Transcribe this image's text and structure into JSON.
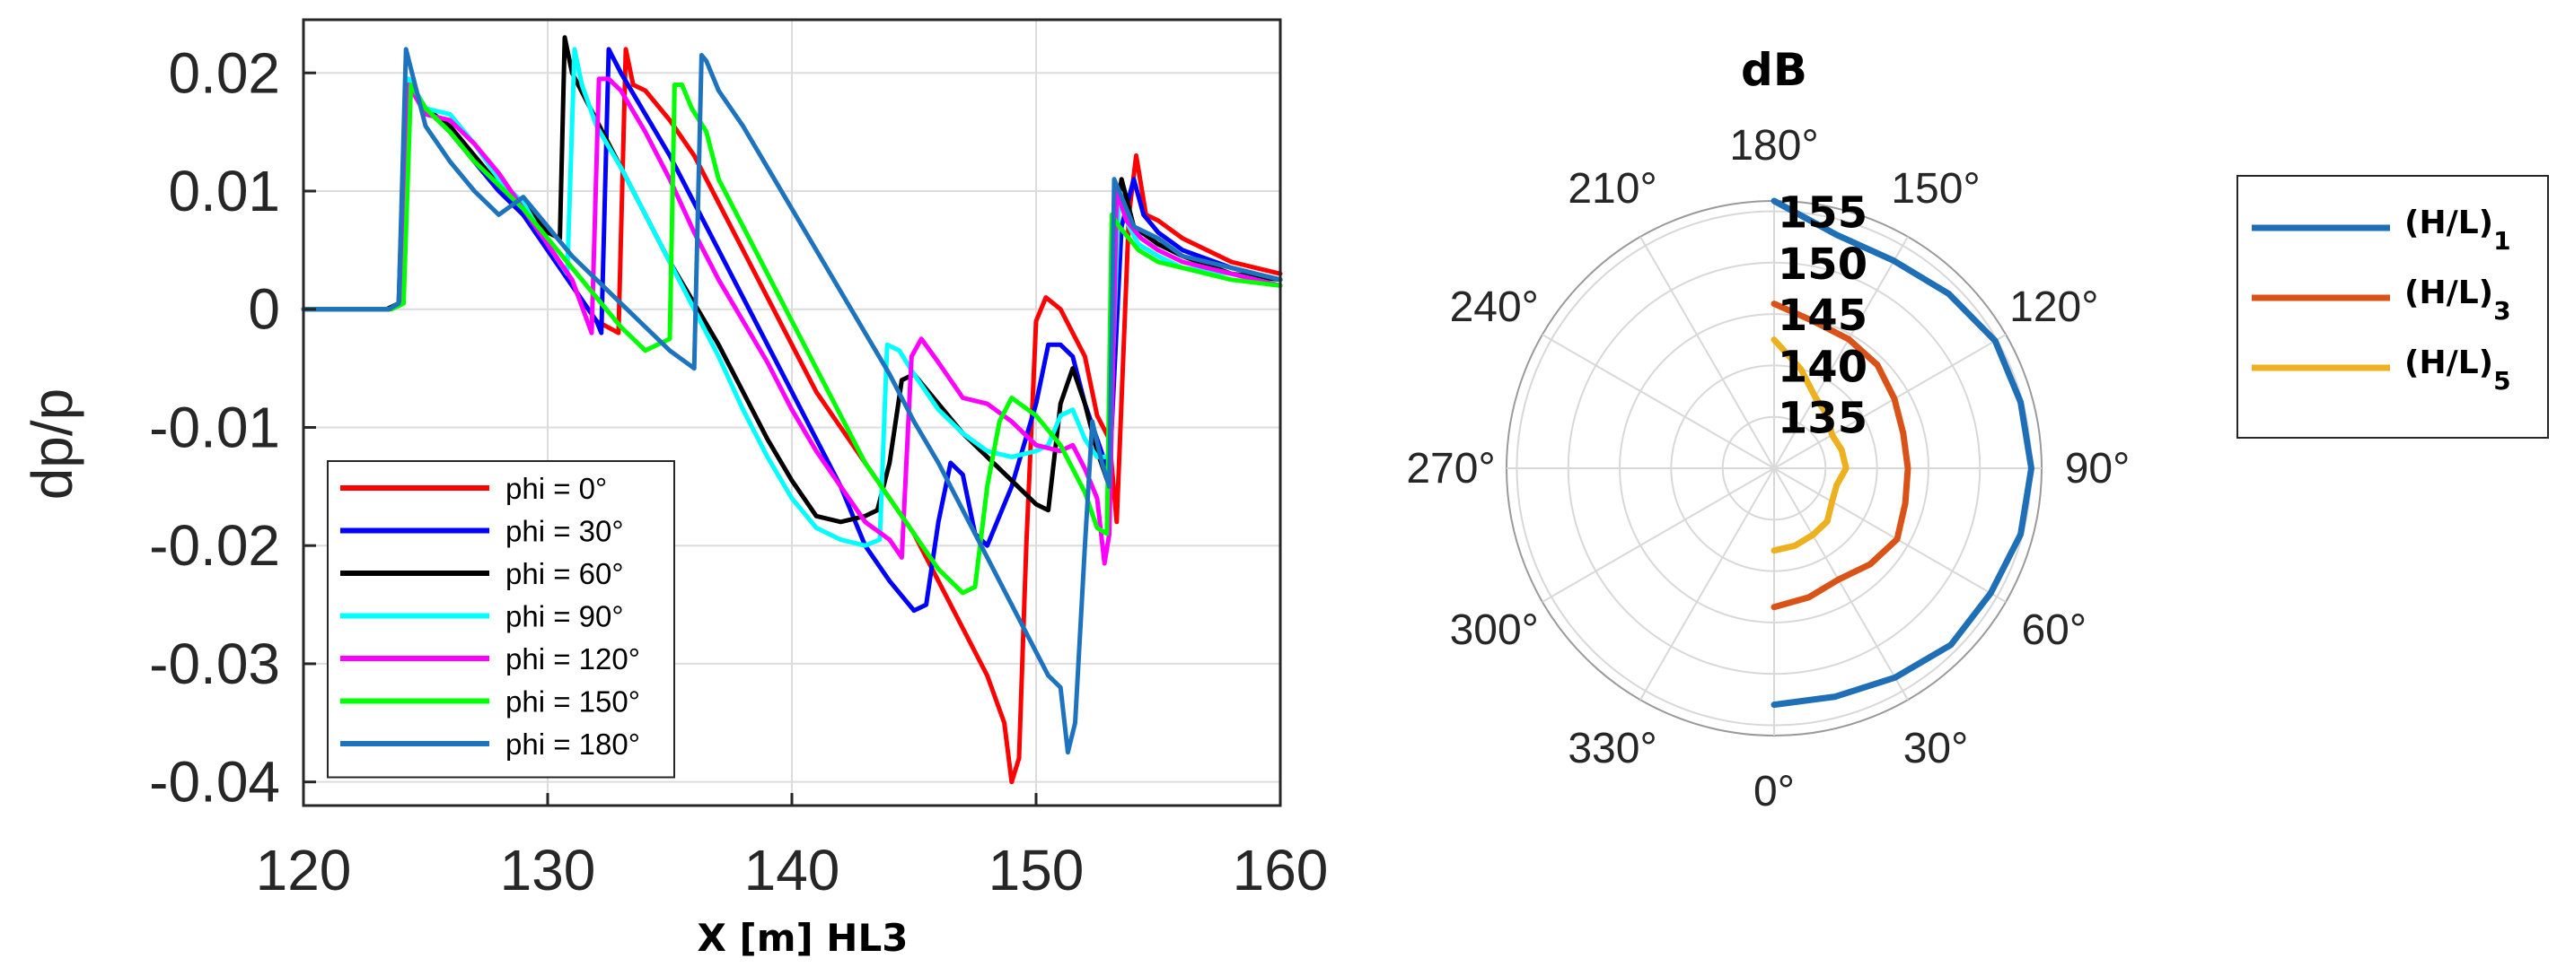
{
  "chart_data": [
    {
      "type": "line",
      "xlabel": "X [m] HL3",
      "ylabel": "dp/p",
      "xlim": [
        120,
        160
      ],
      "ylim": [
        -0.042,
        0.0245
      ],
      "xticks": [
        120,
        130,
        140,
        150,
        160
      ],
      "yticks": [
        0.02,
        0.01,
        0,
        -0.01,
        -0.02,
        -0.03,
        -0.04
      ],
      "ytick_labels": [
        "0.02",
        "0.01",
        "0",
        "-0.01",
        "-0.02",
        "-0.03",
        "-0.04"
      ],
      "grid": true,
      "legend_position": "bottom-left",
      "series": [
        {
          "name": "phi = 0°",
          "color": "#ff0000",
          "x": [
            120,
            123.5,
            124.0,
            124.3,
            125,
            126,
            127,
            128,
            129,
            130,
            131,
            132,
            132.9,
            133.2,
            133.5,
            134,
            135,
            136,
            137,
            138,
            139,
            140,
            141,
            142,
            143,
            144,
            145,
            146,
            147,
            148,
            148.7,
            149,
            149.3,
            149.6,
            150,
            150.4,
            151,
            151.5,
            152,
            152.5,
            153,
            153.3,
            153.8,
            154.1,
            154.5,
            155,
            156,
            158,
            160
          ],
          "y": [
            0,
            0,
            0.0005,
            0.019,
            0.017,
            0.015,
            0.0125,
            0.01,
            0.008,
            0.005,
            0.002,
            -0.001,
            -0.002,
            0.022,
            0.019,
            0.0185,
            0.016,
            0.013,
            0.009,
            0.005,
            0.001,
            -0.003,
            -0.007,
            -0.01,
            -0.013,
            -0.016,
            -0.019,
            -0.023,
            -0.027,
            -0.031,
            -0.035,
            -0.04,
            -0.038,
            -0.02,
            -0.001,
            0.001,
            0,
            -0.002,
            -0.004,
            -0.009,
            -0.011,
            -0.018,
            0.008,
            0.013,
            0.008,
            0.0075,
            0.006,
            0.004,
            0.003
          ]
        },
        {
          "name": "phi = 30°",
          "color": "#0000ff",
          "x": [
            120,
            123.5,
            124.0,
            124.3,
            125,
            126,
            127,
            128,
            129,
            130,
            131,
            132,
            132.2,
            132.5,
            133,
            134,
            135,
            136,
            137,
            138,
            139,
            140,
            141,
            142,
            143,
            144,
            145,
            145.5,
            146,
            146.5,
            147,
            147.5,
            148,
            149,
            150,
            150.5,
            151,
            151.5,
            152,
            152.5,
            153,
            153.5,
            154,
            154.4,
            155,
            156,
            158,
            160
          ],
          "y": [
            0,
            0,
            0.0005,
            0.0195,
            0.017,
            0.015,
            0.0125,
            0.01,
            0.008,
            0.005,
            0.002,
            -0.001,
            -0.002,
            0.022,
            0.02,
            0.0165,
            0.013,
            0.009,
            0.005,
            0.001,
            -0.003,
            -0.007,
            -0.011,
            -0.015,
            -0.02,
            -0.023,
            -0.0255,
            -0.025,
            -0.018,
            -0.013,
            -0.014,
            -0.019,
            -0.02,
            -0.015,
            -0.008,
            -0.003,
            -0.003,
            -0.004,
            -0.008,
            -0.011,
            -0.014,
            0.007,
            0.011,
            0.008,
            0.0065,
            0.005,
            0.0035,
            0.0025
          ]
        },
        {
          "name": "phi = 60°",
          "color": "#000000",
          "x": [
            120,
            123.4,
            123.9,
            124.2,
            125,
            126,
            127,
            128,
            129,
            130,
            130.5,
            130.7,
            131,
            132,
            133,
            134,
            135,
            136,
            137,
            138,
            139,
            140,
            141,
            142,
            143,
            143.5,
            144,
            144.5,
            145,
            146,
            147,
            148,
            149,
            150,
            150.5,
            151,
            151.5,
            152,
            152.5,
            153,
            153.2,
            153.5,
            154,
            155,
            156,
            158,
            160
          ],
          "y": [
            0,
            0,
            0.0005,
            0.0195,
            0.017,
            0.0155,
            0.013,
            0.0105,
            0.009,
            0.0065,
            0.006,
            0.023,
            0.02,
            0.016,
            0.012,
            0.008,
            0.004,
            0.0005,
            -0.003,
            -0.007,
            -0.011,
            -0.0145,
            -0.0175,
            -0.018,
            -0.0175,
            -0.017,
            -0.013,
            -0.006,
            -0.0055,
            -0.008,
            -0.0105,
            -0.0125,
            -0.0145,
            -0.0165,
            -0.017,
            -0.008,
            -0.005,
            -0.008,
            -0.012,
            -0.015,
            0.007,
            0.011,
            0.007,
            0.0055,
            0.0045,
            0.003,
            0.0025
          ]
        },
        {
          "name": "phi = 90°",
          "color": "#00ffff",
          "x": [
            120,
            123.5,
            124.0,
            124.3,
            125,
            126,
            127,
            128,
            129,
            130,
            130.8,
            131.1,
            131.4,
            132,
            133,
            134,
            135,
            136,
            137,
            138,
            139,
            140,
            141,
            142,
            143,
            143.6,
            143.9,
            144.4,
            145,
            145.5,
            146,
            147,
            148,
            149,
            150,
            150.5,
            151,
            151.5,
            152,
            152.5,
            153,
            153.4,
            153.8,
            154.2,
            155,
            156,
            158,
            160
          ],
          "y": [
            0,
            0,
            0.0005,
            0.0195,
            0.017,
            0.0165,
            0.014,
            0.011,
            0.009,
            0.0055,
            0.003,
            0.022,
            0.019,
            0.0155,
            0.012,
            0.008,
            0.004,
            0,
            -0.004,
            -0.0085,
            -0.0125,
            -0.016,
            -0.0185,
            -0.0195,
            -0.02,
            -0.0195,
            -0.003,
            -0.0035,
            -0.0055,
            -0.007,
            -0.0085,
            -0.0105,
            -0.012,
            -0.0125,
            -0.012,
            -0.0115,
            -0.009,
            -0.0085,
            -0.011,
            -0.0125,
            -0.0125,
            0.01,
            0.007,
            0.0055,
            0.0045,
            0.0035,
            0.003,
            0.002
          ]
        },
        {
          "name": "phi = 120°",
          "color": "#ff00ff",
          "x": [
            120,
            123.5,
            124.0,
            124.3,
            125,
            126,
            127,
            128,
            129,
            130,
            131,
            131.8,
            132.1,
            132.5,
            133,
            134,
            135,
            136,
            137,
            138,
            139,
            140,
            141,
            142,
            143,
            144,
            144.5,
            144.9,
            145.3,
            146,
            147,
            148,
            149,
            150,
            151,
            151.5,
            152,
            152.5,
            152.8,
            153,
            153.3,
            153.7,
            154.3,
            155,
            156,
            158,
            160
          ],
          "y": [
            0,
            0,
            0.0005,
            0.019,
            0.0165,
            0.016,
            0.014,
            0.0115,
            0.0085,
            0.0055,
            0.0025,
            -0.002,
            0.0195,
            0.0195,
            0.0185,
            0.015,
            0.011,
            0.0065,
            0.0025,
            -0.001,
            -0.0045,
            -0.0085,
            -0.012,
            -0.015,
            -0.018,
            -0.0195,
            -0.021,
            -0.004,
            -0.0025,
            -0.0045,
            -0.0075,
            -0.008,
            -0.0095,
            -0.0115,
            -0.012,
            -0.0115,
            -0.0135,
            -0.016,
            -0.0215,
            -0.019,
            0.01,
            0.0075,
            0.006,
            0.005,
            0.004,
            0.003,
            0.002
          ]
        },
        {
          "name": "phi = 150°",
          "color": "#00ff00",
          "x": [
            120,
            123.6,
            124.1,
            124.4,
            125,
            126,
            127,
            128,
            129,
            130,
            131,
            132,
            133,
            134,
            135,
            135.2,
            135.5,
            135.9,
            136.5,
            137,
            138,
            139,
            140,
            141,
            142,
            143,
            144,
            145,
            146,
            147,
            147.5,
            148,
            148.5,
            149,
            150,
            151,
            151.5,
            152,
            152.5,
            152.9,
            153.1,
            153.4,
            153.8,
            154.2,
            155,
            156,
            158,
            160
          ],
          "y": [
            0,
            0,
            0.0005,
            0.019,
            0.017,
            0.015,
            0.0125,
            0.0105,
            0.0085,
            0.006,
            0.0035,
            0.001,
            -0.0015,
            -0.0035,
            -0.0025,
            0.019,
            0.019,
            0.017,
            0.015,
            0.011,
            0.007,
            0.003,
            -0.001,
            -0.005,
            -0.009,
            -0.013,
            -0.016,
            -0.019,
            -0.022,
            -0.024,
            -0.0235,
            -0.015,
            -0.0095,
            -0.0075,
            -0.009,
            -0.0115,
            -0.0135,
            -0.0155,
            -0.0185,
            -0.019,
            0.008,
            0.007,
            0.006,
            0.005,
            0.004,
            0.0035,
            0.0025,
            0.002
          ]
        },
        {
          "name": "phi = 180°",
          "color": "#1e73be",
          "x": [
            120,
            123.5,
            123.9,
            124.2,
            125,
            126,
            127,
            128,
            129,
            130,
            131,
            132,
            133,
            134,
            135,
            136,
            136.3,
            136.5,
            137,
            138,
            139,
            140,
            141,
            142,
            143,
            144,
            145,
            146,
            147,
            148,
            149,
            150,
            150.5,
            151,
            151.3,
            151.6,
            152,
            152.3,
            152.7,
            153.0,
            153.2,
            153.5,
            154,
            154.5,
            155,
            156,
            158,
            160
          ],
          "y": [
            0,
            0,
            0.0005,
            0.022,
            0.0155,
            0.0125,
            0.01,
            0.008,
            0.0095,
            0.007,
            0.0045,
            0.0025,
            0.0005,
            -0.0015,
            -0.0035,
            -0.005,
            0.0215,
            0.021,
            0.0185,
            0.0155,
            0.012,
            0.0085,
            0.005,
            0.0015,
            -0.002,
            -0.0055,
            -0.0095,
            -0.013,
            -0.017,
            -0.021,
            -0.025,
            -0.029,
            -0.031,
            -0.032,
            -0.0375,
            -0.035,
            -0.02,
            -0.0095,
            -0.013,
            -0.015,
            0.011,
            0.0095,
            0.007,
            0.0065,
            0.006,
            0.0045,
            0.0035,
            0.0025
          ]
        }
      ]
    },
    {
      "type": "polar-line",
      "title": "dB",
      "theta_direction": "counterclockwise",
      "theta_zero": "bottom",
      "theta_ticks": [
        "0°",
        "30°",
        "60°",
        "90°",
        "120°",
        "150°",
        "180°",
        "210°",
        "240°",
        "270°",
        "300°",
        "330°"
      ],
      "r_ticks": [
        135,
        140,
        145,
        150,
        155
      ],
      "r_tick_labels": [
        "135",
        "140",
        "145",
        "150",
        "155"
      ],
      "rlim": [
        130,
        156
      ],
      "legend_position": "right",
      "series": [
        {
          "name": "(H/L)",
          "subscript": "1",
          "color": "#1e6fb5",
          "theta": [
            0,
            15,
            30,
            45,
            60,
            75,
            90,
            105,
            120,
            135,
            150,
            165,
            180
          ],
          "r": [
            153.0,
            153.0,
            153.5,
            154.3,
            154.3,
            154.8,
            155.0,
            154.8,
            154.8,
            154.0,
            153.3,
            153.5,
            156.0
          ]
        },
        {
          "name": "(H/L)",
          "subscript": "3",
          "color": "#d95319",
          "theta": [
            0,
            15,
            30,
            45,
            60,
            75,
            90,
            105,
            120,
            135,
            150,
            165,
            180
          ],
          "r": [
            143.5,
            143.0,
            142.5,
            143.2,
            143.8,
            143.2,
            143.0,
            143.0,
            143.5,
            144.2,
            144.5,
            144.8,
            146.0
          ]
        },
        {
          "name": "(H/L)",
          "subscript": "5",
          "color": "#edb120",
          "theta": [
            0,
            15,
            30,
            45,
            60,
            75,
            90,
            105,
            120,
            135,
            150,
            165,
            180
          ],
          "r": [
            138.0,
            137.8,
            137.5,
            137.3,
            136.5,
            136.3,
            137.0,
            136.8,
            136.5,
            137.3,
            138.0,
            140.0,
            142.5
          ]
        }
      ]
    }
  ]
}
